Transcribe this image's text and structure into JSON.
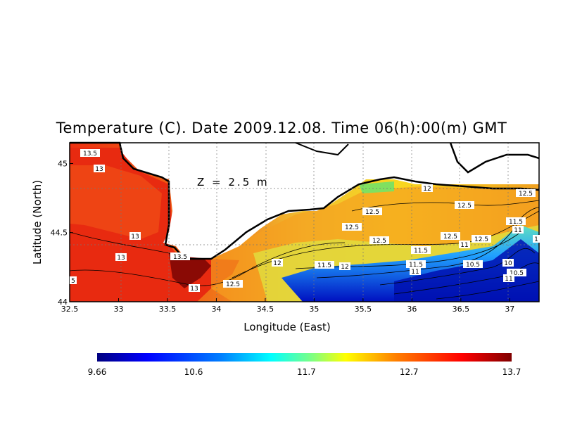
{
  "title": "Temperature (C). Date 2009.12.08. Time 06(h):00(m) GMT",
  "depth_label": "Z = 2.5 m",
  "xlabel": "Longitude (East)",
  "ylabel": "Latitude (North)",
  "xticks": [
    "32.5",
    "33",
    "33.5",
    "34",
    "34.5",
    "35",
    "35.5",
    "36",
    "36.5",
    "37"
  ],
  "yticks": [
    "44",
    "44.5",
    "45"
  ],
  "contour_labels": [
    "13.5",
    "13",
    "13",
    "13",
    "13.5",
    "13",
    "12.5",
    "12",
    "12",
    "11.5",
    "12.5",
    "12.5",
    "12.5",
    "12.5",
    "12.5",
    "12.5",
    "12.5",
    "12",
    "11.5",
    "11",
    "11.5",
    "11",
    "10.5",
    "10",
    "10.5",
    "11",
    "11.5",
    "11",
    "1",
    "5"
  ],
  "colorbar_ticks": [
    "9.66",
    "10.6",
    "11.7",
    "12.7",
    "13.7"
  ],
  "colors": {
    "scale": [
      "#00007f",
      "#0000ff",
      "#0080ff",
      "#00ffff",
      "#80ff80",
      "#ffff00",
      "#ff8000",
      "#ff0000",
      "#7f0000"
    ]
  },
  "chart_data": {
    "type": "heatmap",
    "variable": "Temperature (C)",
    "date": "2009.12.08",
    "time": "06(h):00(m) GMT",
    "depth": "Z = 2.5 m",
    "xlabel": "Longitude (East)",
    "ylabel": "Latitude (North)",
    "xlim": [
      32.5,
      37.3
    ],
    "ylim": [
      44,
      45.15
    ],
    "color_range": [
      9.66,
      13.7
    ],
    "colorbar_ticks": [
      9.66,
      10.6,
      11.7,
      12.7,
      13.7
    ],
    "grid": true,
    "contour_levels": [
      10,
      10.5,
      11,
      11.5,
      12,
      12.5,
      13,
      13.5
    ]
  }
}
